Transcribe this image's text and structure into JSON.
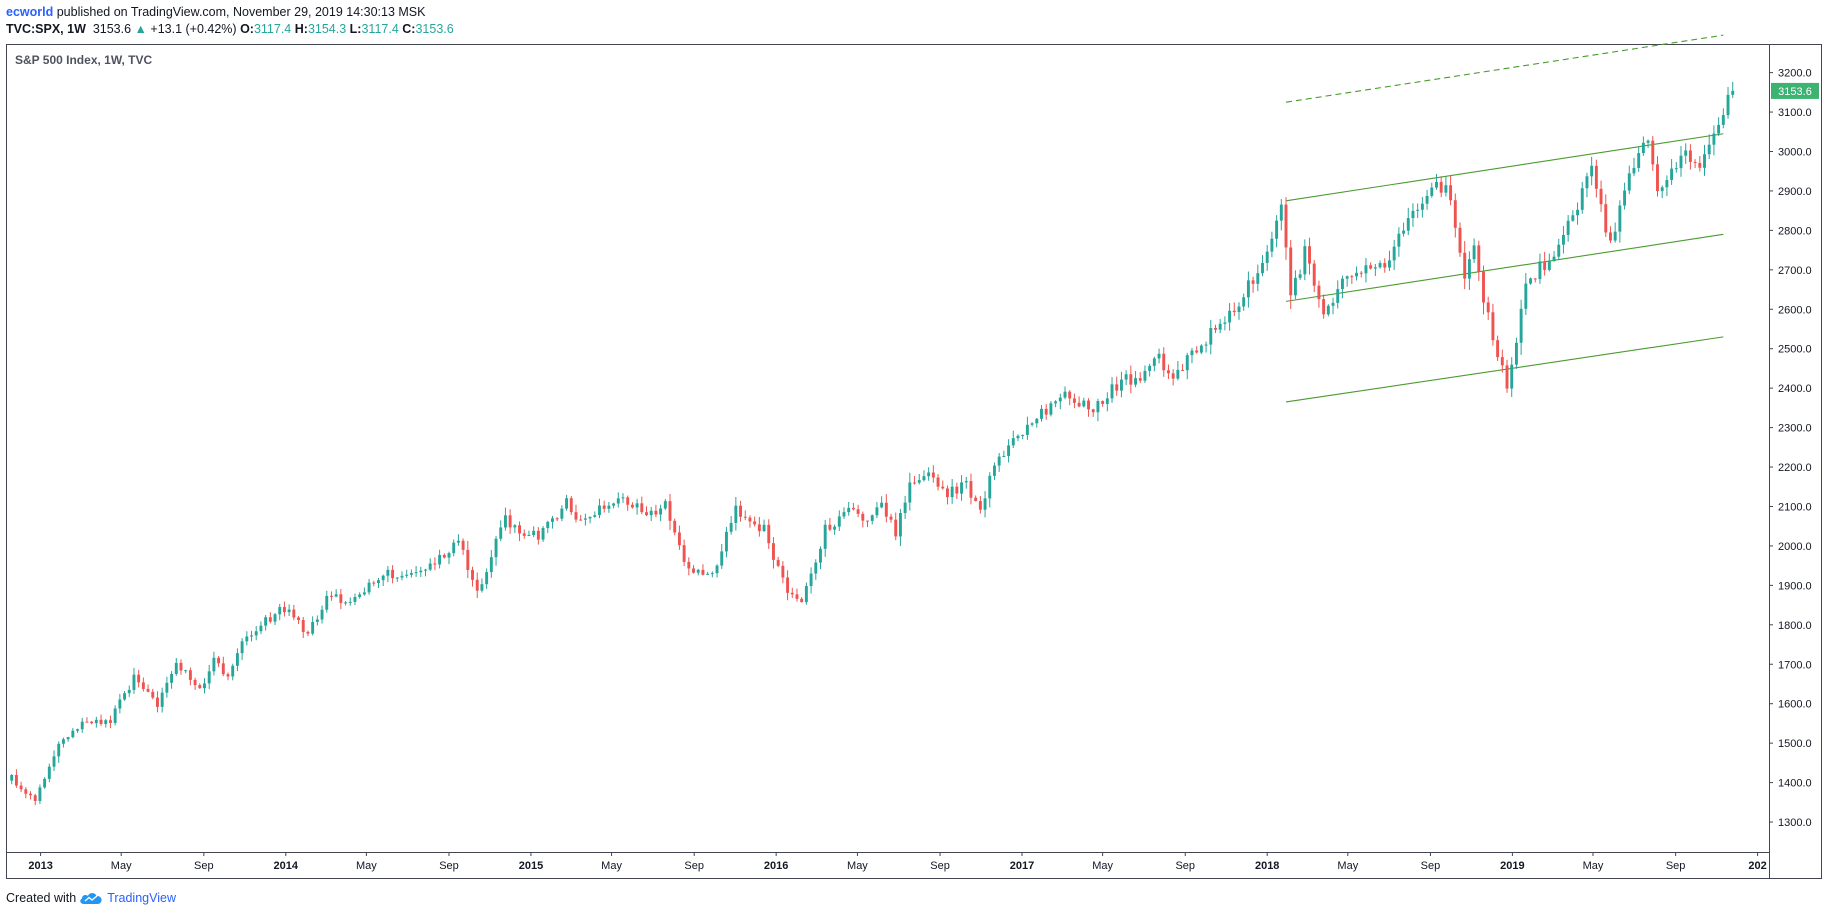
{
  "header": {
    "author": "ecworld",
    "published_text": " published on TradingView.com, November 29, 2019 14:30:13 MSK",
    "symbol": "TVC:SPX, 1W",
    "last": "3153.6",
    "change": "+13.1 (+0.42%)",
    "o_label": "O:",
    "o_value": "3117.4",
    "h_label": "H:",
    "h_value": "3154.3",
    "l_label": "L:",
    "l_value": "3117.4",
    "c_label": "C:",
    "c_value": "3153.6"
  },
  "footer": {
    "created_with": "Created with",
    "brand": "TradingView"
  },
  "colors": {
    "up": "#26a69a",
    "down": "#ef5350",
    "channel": "#4a9b2f",
    "price_badge": "#3cb371"
  },
  "chart_data": {
    "type": "candlestick",
    "title": "S&P 500 Index, 1W, TVC",
    "interval": "1W",
    "y_ticks": [
      1300,
      1400,
      1500,
      1600,
      1700,
      1800,
      1900,
      2000,
      2100,
      2200,
      2300,
      2400,
      2500,
      2600,
      2700,
      2800,
      2900,
      3000,
      3100,
      3200
    ],
    "y_tick_labels": [
      "1300.0",
      "1400.0",
      "1500.0",
      "1600.0",
      "1700.0",
      "1800.0",
      "1900.0",
      "2000.0",
      "2100.0",
      "2200.0",
      "2300.0",
      "2400.0",
      "2500.0",
      "2600.0",
      "2700.0",
      "2800.0",
      "2900.0",
      "3000.0",
      "3100.0",
      "3200.0"
    ],
    "x_ticks": [
      {
        "date": "2013-01-01",
        "label": "2013"
      },
      {
        "date": "2013-05-01",
        "label": "May"
      },
      {
        "date": "2013-09-01",
        "label": "Sep"
      },
      {
        "date": "2014-01-01",
        "label": "2014"
      },
      {
        "date": "2014-05-01",
        "label": "May"
      },
      {
        "date": "2014-09-01",
        "label": "Sep"
      },
      {
        "date": "2015-01-01",
        "label": "2015"
      },
      {
        "date": "2015-05-01",
        "label": "May"
      },
      {
        "date": "2015-09-01",
        "label": "Sep"
      },
      {
        "date": "2016-01-01",
        "label": "2016"
      },
      {
        "date": "2016-05-01",
        "label": "May"
      },
      {
        "date": "2016-09-01",
        "label": "Sep"
      },
      {
        "date": "2017-01-01",
        "label": "2017"
      },
      {
        "date": "2017-05-01",
        "label": "May"
      },
      {
        "date": "2017-09-01",
        "label": "Sep"
      },
      {
        "date": "2018-01-01",
        "label": "2018"
      },
      {
        "date": "2018-05-01",
        "label": "May"
      },
      {
        "date": "2018-09-01",
        "label": "Sep"
      },
      {
        "date": "2019-01-01",
        "label": "2019"
      },
      {
        "date": "2019-05-01",
        "label": "May"
      },
      {
        "date": "2019-09-01",
        "label": "Sep"
      },
      {
        "date": "2020-01-01",
        "label": "202"
      }
    ],
    "x_range": [
      "2012-11-12",
      "2020-01-18"
    ],
    "y_range": [
      1224,
      3270
    ],
    "last_price": 3153.6,
    "last_price_label": "3153.6",
    "anchors": [
      [
        "2012-11-19",
        1410
      ],
      [
        "2012-12-24",
        1360
      ],
      [
        "2013-01-28",
        1500
      ],
      [
        "2013-03-04",
        1555
      ],
      [
        "2013-04-15",
        1560
      ],
      [
        "2013-05-20",
        1665
      ],
      [
        "2013-06-24",
        1590
      ],
      [
        "2013-07-22",
        1700
      ],
      [
        "2013-08-26",
        1640
      ],
      [
        "2013-09-16",
        1705
      ],
      [
        "2013-10-07",
        1675
      ],
      [
        "2013-11-04",
        1770
      ],
      [
        "2013-12-30",
        1845
      ],
      [
        "2014-02-03",
        1780
      ],
      [
        "2014-03-03",
        1865
      ],
      [
        "2014-04-14",
        1865
      ],
      [
        "2014-05-26",
        1925
      ],
      [
        "2014-07-28",
        1935
      ],
      [
        "2014-09-15",
        2010
      ],
      [
        "2014-10-13",
        1880
      ],
      [
        "2014-11-24",
        2070
      ],
      [
        "2014-12-15",
        2040
      ],
      [
        "2015-01-12",
        2020
      ],
      [
        "2015-02-23",
        2110
      ],
      [
        "2015-03-09",
        2070
      ],
      [
        "2015-05-18",
        2125
      ],
      [
        "2015-07-06",
        2075
      ],
      [
        "2015-07-20",
        2110
      ],
      [
        "2015-08-24",
        1935
      ],
      [
        "2015-09-28",
        1920
      ],
      [
        "2015-11-02",
        2095
      ],
      [
        "2015-12-14",
        2040
      ],
      [
        "2016-01-18",
        1880
      ],
      [
        "2016-02-08",
        1860
      ],
      [
        "2016-03-14",
        2040
      ],
      [
        "2016-04-18",
        2090
      ],
      [
        "2016-05-16",
        2055
      ],
      [
        "2016-06-06",
        2100
      ],
      [
        "2016-06-27",
        2035
      ],
      [
        "2016-07-18",
        2165
      ],
      [
        "2016-08-15",
        2185
      ],
      [
        "2016-09-12",
        2135
      ],
      [
        "2016-10-10",
        2150
      ],
      [
        "2016-10-31",
        2085
      ],
      [
        "2016-11-14",
        2180
      ],
      [
        "2016-12-19",
        2265
      ],
      [
        "2017-02-27",
        2385
      ],
      [
        "2017-04-17",
        2345
      ],
      [
        "2017-05-29",
        2420
      ],
      [
        "2017-06-26",
        2425
      ],
      [
        "2017-07-24",
        2475
      ],
      [
        "2017-08-14",
        2425
      ],
      [
        "2017-09-18",
        2500
      ],
      [
        "2017-10-30",
        2580
      ],
      [
        "2017-12-18",
        2685
      ],
      [
        "2018-01-22",
        2870
      ],
      [
        "2018-02-05",
        2620
      ],
      [
        "2018-02-26",
        2750
      ],
      [
        "2018-03-26",
        2590
      ],
      [
        "2018-04-23",
        2670
      ],
      [
        "2018-05-28",
        2720
      ],
      [
        "2018-06-25",
        2720
      ],
      [
        "2018-08-27",
        2900
      ],
      [
        "2018-09-24",
        2920
      ],
      [
        "2018-10-08",
        2820
      ],
      [
        "2018-10-22",
        2680
      ],
      [
        "2018-11-05",
        2780
      ],
      [
        "2018-11-19",
        2630
      ],
      [
        "2018-12-24",
        2400
      ],
      [
        "2019-01-21",
        2660
      ],
      [
        "2019-03-04",
        2745
      ],
      [
        "2019-04-29",
        2945
      ],
      [
        "2019-05-27",
        2760
      ],
      [
        "2019-06-24",
        2945
      ],
      [
        "2019-07-22",
        3025
      ],
      [
        "2019-08-05",
        2915
      ],
      [
        "2019-09-16",
        2995
      ],
      [
        "2019-10-07",
        2940
      ],
      [
        "2019-10-28",
        3065
      ],
      [
        "2019-11-25",
        3153.6
      ]
    ],
    "channels": [
      {
        "style": "solid",
        "from": [
          "2018-01-29",
          2875
        ],
        "to": [
          "2019-11-11",
          3045
        ]
      },
      {
        "style": "solid",
        "from": [
          "2018-01-29",
          2620
        ],
        "to": [
          "2019-11-11",
          2790
        ]
      },
      {
        "style": "solid",
        "from": [
          "2018-01-29",
          2365
        ],
        "to": [
          "2019-11-11",
          2530
        ]
      },
      {
        "style": "dashed",
        "from": [
          "2018-01-29",
          3125
        ],
        "to": [
          "2019-11-11",
          3295
        ]
      }
    ]
  }
}
